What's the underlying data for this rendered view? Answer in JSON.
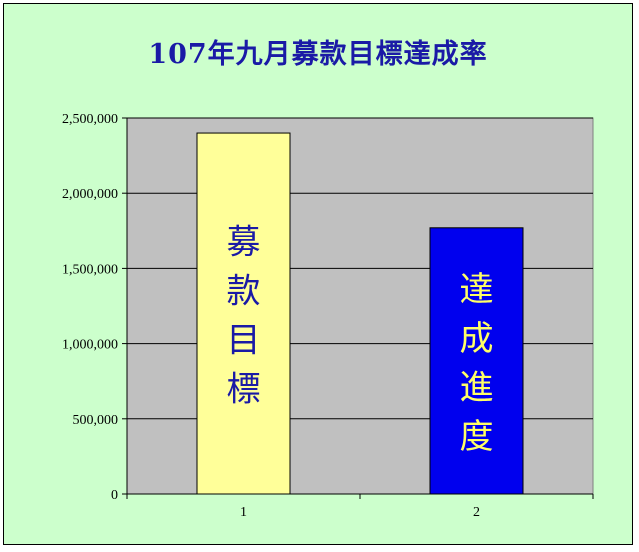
{
  "chart_data": {
    "type": "bar",
    "title": "107年九月募款目標達成率",
    "categories": [
      "1",
      "2"
    ],
    "values": [
      2400000,
      1770000
    ],
    "bar_labels": [
      "募款目標",
      "達成進度"
    ],
    "ylim": [
      0,
      2500000
    ],
    "yticks": [
      0,
      500000,
      1000000,
      1500000,
      2000000,
      2500000
    ],
    "ytick_labels": [
      "0",
      "500,000",
      "1,000,000",
      "1,500,000",
      "2,000,000",
      "2,500,000"
    ],
    "grid": true,
    "legend": "none"
  },
  "colors": {
    "background": "#ccffcc",
    "plot_area": "#c0c0c0",
    "title": "#1a1aa6",
    "bar1": "#ffff99",
    "bar2": "#0000ee",
    "bar1_text": "#1a1aa6",
    "bar2_text": "#ffff66"
  }
}
